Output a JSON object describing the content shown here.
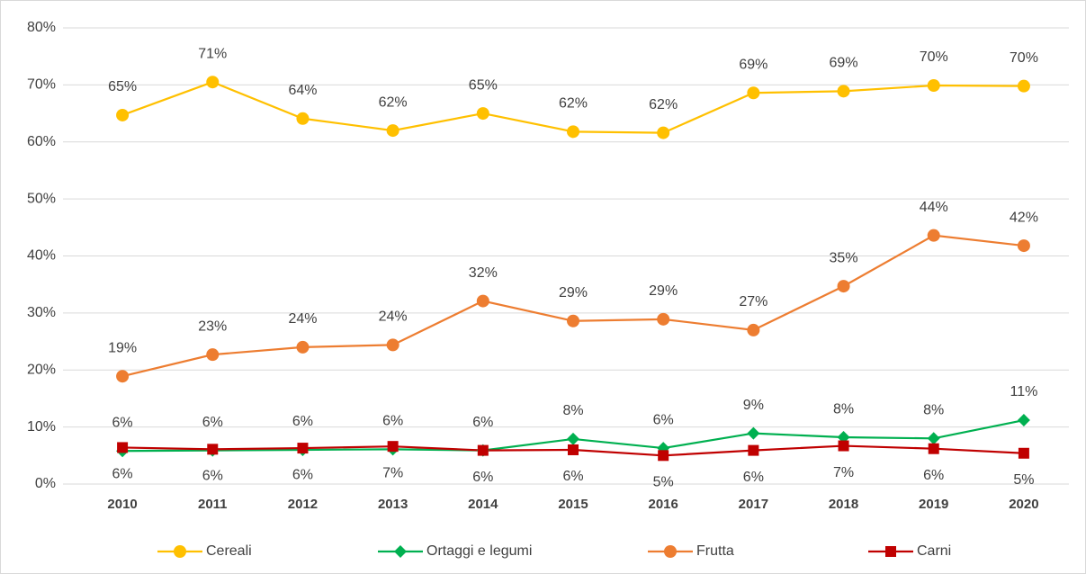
{
  "chart_data": {
    "type": "line",
    "categories": [
      "2010",
      "2011",
      "2012",
      "2013",
      "2014",
      "2015",
      "2016",
      "2017",
      "2018",
      "2019",
      "2020"
    ],
    "ylim": [
      0,
      80
    ],
    "yticks": [
      {
        "value": 0,
        "label": "0%"
      },
      {
        "value": 10,
        "label": "10%"
      },
      {
        "value": 20,
        "label": "20%"
      },
      {
        "value": 30,
        "label": "30%"
      },
      {
        "value": 40,
        "label": "40%"
      },
      {
        "value": 50,
        "label": "50%"
      },
      {
        "value": 60,
        "label": "60%"
      },
      {
        "value": 70,
        "label": "70%"
      },
      {
        "value": 80,
        "label": "80%"
      }
    ],
    "grid": true,
    "legend": "bottom",
    "series": [
      {
        "name": "Cereali",
        "color": "#FFC000",
        "marker": "circle",
        "label_position": "above",
        "values": [
          64.7,
          70.5,
          64.1,
          62.0,
          65.0,
          61.8,
          61.6,
          68.6,
          68.9,
          69.9,
          69.8
        ],
        "value_labels": [
          "65%",
          "71%",
          "64%",
          "62%",
          "65%",
          "62%",
          "62%",
          "69%",
          "69%",
          "70%",
          "70%"
        ]
      },
      {
        "name": "Ortaggi e legumi",
        "color": "#00B050",
        "marker": "diamond",
        "label_position": "above",
        "values": [
          5.8,
          5.9,
          6.0,
          6.1,
          5.9,
          7.9,
          6.3,
          8.9,
          8.2,
          8.0,
          11.2
        ],
        "value_labels": [
          "6%",
          "6%",
          "6%",
          "6%",
          "6%",
          "8%",
          "6%",
          "9%",
          "8%",
          "8%",
          "11%"
        ]
      },
      {
        "name": "Frutta",
        "color": "#ED7D31",
        "marker": "circle",
        "label_position": "above",
        "values": [
          18.9,
          22.7,
          24.0,
          24.4,
          32.1,
          28.6,
          28.9,
          27.0,
          34.7,
          43.6,
          41.8
        ],
        "value_labels": [
          "19%",
          "23%",
          "24%",
          "24%",
          "32%",
          "29%",
          "29%",
          "27%",
          "35%",
          "44%",
          "42%"
        ]
      },
      {
        "name": "Carni",
        "color": "#C00000",
        "marker": "square",
        "label_position": "below",
        "values": [
          6.4,
          6.1,
          6.3,
          6.6,
          5.9,
          6.0,
          5.0,
          5.9,
          6.7,
          6.2,
          5.4
        ],
        "value_labels": [
          "6%",
          "6%",
          "6%",
          "7%",
          "6%",
          "6%",
          "5%",
          "6%",
          "7%",
          "6%",
          "5%"
        ]
      }
    ]
  }
}
